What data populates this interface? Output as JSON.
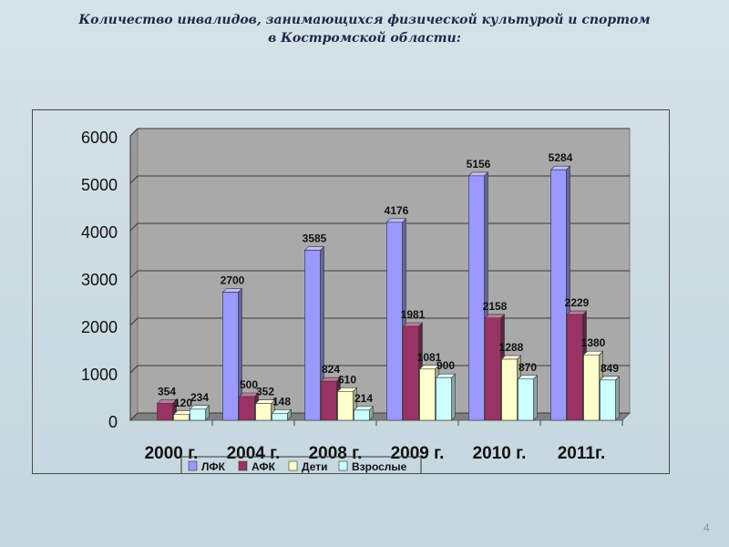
{
  "slide": {
    "title_line1": "Количество инвалидов, занимающихся физической культурой и спортом",
    "title_line2": "в Костромской области:",
    "page_number": "4"
  },
  "colors": {
    "plot_background": "#a9a9a9",
    "floor": "#7f7f7f",
    "series": [
      "#9999ff",
      "#993366",
      "#ffffcc",
      "#ccffff"
    ]
  },
  "chart_data": {
    "type": "bar",
    "style": "3d-clustered",
    "title": "",
    "xlabel": "",
    "ylabel": "",
    "categories": [
      "2000 г.",
      "2004 г.",
      "2008 г.",
      "2009 г.",
      "2010 г.",
      "2011г."
    ],
    "ylim": [
      0,
      6000
    ],
    "yticks": [
      0,
      1000,
      2000,
      3000,
      4000,
      5000,
      6000
    ],
    "grid": true,
    "legend_position": "bottom",
    "series": [
      {
        "name": "ЛФК",
        "values": [
          null,
          2700,
          3585,
          4176,
          5156,
          5284
        ]
      },
      {
        "name": "АФК",
        "values": [
          354,
          500,
          824,
          1981,
          2158,
          2229
        ]
      },
      {
        "name": "Дети",
        "values": [
          120,
          352,
          610,
          1081,
          1288,
          1380
        ]
      },
      {
        "name": "Взрослые",
        "values": [
          234,
          148,
          214,
          900,
          870,
          849
        ]
      }
    ]
  }
}
